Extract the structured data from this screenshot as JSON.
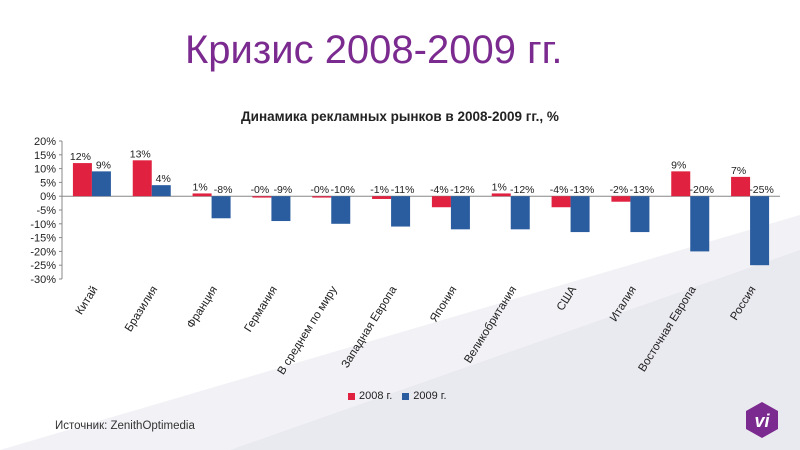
{
  "slide": {
    "title": "Кризис 2008-2009 гг.",
    "source": "Источник: ZenithOptimedia"
  },
  "colors": {
    "title": "#7b2a8f",
    "series_2008": "#e0213f",
    "series_2009": "#2a5d9f",
    "logo": "#7b2a8f"
  },
  "logo": {
    "text": "vi"
  },
  "chart_data": {
    "type": "bar",
    "title": "Динамика рекламных рынков в 2008-2009 гг., %",
    "categories": [
      "Китай",
      "Бразилия",
      "Франция",
      "Германия",
      "В среднем по миру",
      "Западная Европа",
      "Япония",
      "Великобритания",
      "США",
      "Италия",
      "Восточная Европа",
      "Россия"
    ],
    "series": [
      {
        "name": "2008 г.",
        "values": [
          12,
          13,
          1,
          -0.5,
          -0.5,
          -1,
          -4,
          1,
          -4,
          -2,
          9,
          7
        ],
        "labels": [
          "12%",
          "13%",
          "1%",
          "-0%",
          "-0%",
          "-1%",
          "-4%",
          "1%",
          "-4%",
          "-2%",
          "9%",
          "7%"
        ]
      },
      {
        "name": "2009 г.",
        "values": [
          9,
          4,
          -8,
          -9,
          -10,
          -11,
          -12,
          -12,
          -13,
          -13,
          -20,
          -25
        ],
        "labels": [
          "9%",
          "4%",
          "-8%",
          "-9%",
          "-10%",
          "-11%",
          "-12%",
          "-12%",
          "-13%",
          "-13%",
          "-20%",
          "-25%"
        ]
      }
    ],
    "yticks": [
      "20%",
      "15%",
      "10%",
      "5%",
      "0%",
      "-5%",
      "-10%",
      "-15%",
      "-20%",
      "-25%",
      "-30%"
    ],
    "ylim": [
      -30,
      20
    ],
    "legend_position": "bottom"
  }
}
